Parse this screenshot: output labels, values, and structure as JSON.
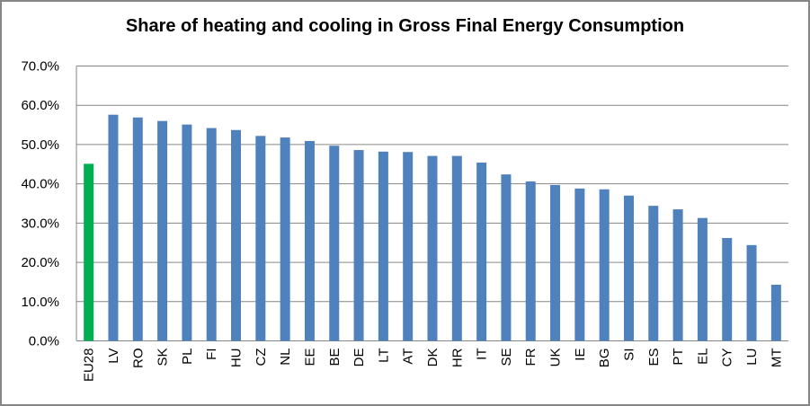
{
  "chart_data": {
    "type": "bar",
    "title": "Share of heating and cooling in Gross Final Energy Consumption",
    "xlabel": "",
    "ylabel": "",
    "ylim": [
      0,
      70
    ],
    "y_ticks": [
      "0.0%",
      "10.0%",
      "20.0%",
      "30.0%",
      "40.0%",
      "50.0%",
      "60.0%",
      "70.0%"
    ],
    "grid": true,
    "legend": "none",
    "categories": [
      "EU28",
      "LV",
      "RO",
      "SK",
      "PL",
      "FI",
      "HU",
      "CZ",
      "NL",
      "EE",
      "BE",
      "DE",
      "LT",
      "AT",
      "DK",
      "HR",
      "IT",
      "SE",
      "FR",
      "UK",
      "IE",
      "BG",
      "SI",
      "ES",
      "PT",
      "EL",
      "CY",
      "LU",
      "MT"
    ],
    "values": [
      45.1,
      57.6,
      56.9,
      56.0,
      55.1,
      54.2,
      53.7,
      52.2,
      51.8,
      50.9,
      49.7,
      48.6,
      48.2,
      48.1,
      47.1,
      47.1,
      45.4,
      42.4,
      40.6,
      39.7,
      38.8,
      38.6,
      37.0,
      34.4,
      33.5,
      31.3,
      26.2,
      24.4,
      14.3
    ],
    "colors": {
      "highlight": "#00B050",
      "bar": "#4F81BD",
      "grid": "#868686"
    }
  }
}
